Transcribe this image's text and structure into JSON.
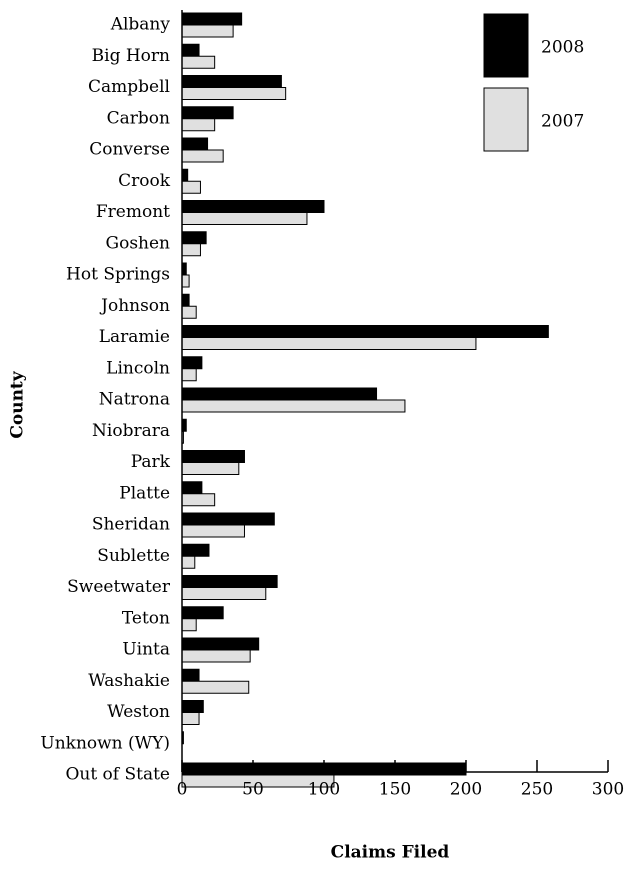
{
  "chart_data": {
    "type": "hbar",
    "x_label": "Claims Filed",
    "y_label": "County",
    "categories": [
      "Albany",
      "Big Horn",
      "Campbell",
      "Carbon",
      "Converse",
      "Crook",
      "Fremont",
      "Goshen",
      "Hot Springs",
      "Johnson",
      "Laramie",
      "Lincoln",
      "Natrona",
      "Niobrara",
      "Park",
      "Platte",
      "Sheridan",
      "Sublette",
      "Sweetwater",
      "Teton",
      "Uinta",
      "Washakie",
      "Weston",
      "Unknown (WY)",
      "Out of State"
    ],
    "series": [
      {
        "name": "2008",
        "color": "#000000",
        "values": [
          42,
          12,
          70,
          36,
          18,
          4,
          100,
          17,
          3,
          5,
          258,
          14,
          137,
          3,
          44,
          14,
          65,
          19,
          67,
          29,
          54,
          12,
          15,
          1,
          200
        ]
      },
      {
        "name": "2007",
        "color": "#e0e0e0",
        "values": [
          36,
          23,
          73,
          23,
          29,
          13,
          88,
          13,
          5,
          10,
          207,
          10,
          157,
          1,
          40,
          23,
          44,
          9,
          59,
          10,
          48,
          47,
          12,
          0,
          107
        ]
      }
    ],
    "xlim": [
      0,
      300
    ],
    "xticks": [
      0,
      50,
      100,
      150,
      200,
      250,
      300
    ],
    "legend": "upper right"
  }
}
